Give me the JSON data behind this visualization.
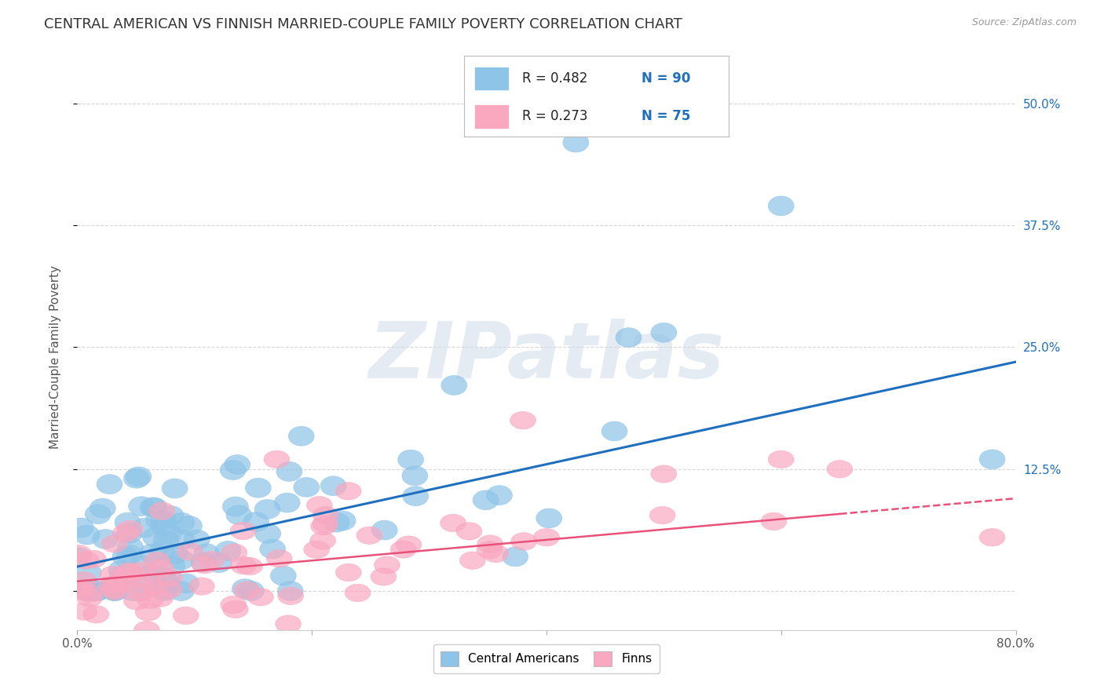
{
  "title": "CENTRAL AMERICAN VS FINNISH MARRIED-COUPLE FAMILY POVERTY CORRELATION CHART",
  "source": "Source: ZipAtlas.com",
  "ylabel": "Married-Couple Family Poverty",
  "xlim": [
    0.0,
    0.8
  ],
  "ylim": [
    -0.04,
    0.52
  ],
  "xticks": [
    0.0,
    0.2,
    0.4,
    0.6,
    0.8
  ],
  "xticklabels": [
    "0.0%",
    "",
    "",
    "",
    "80.0%"
  ],
  "yticks": [
    0.0,
    0.125,
    0.25,
    0.375,
    0.5
  ],
  "yticklabels_right": [
    "",
    "12.5%",
    "25.0%",
    "37.5%",
    "50.0%"
  ],
  "blue_color": "#8ec4e8",
  "pink_color": "#f9a8c0",
  "blue_line_color": "#1f6fbe",
  "pink_line_color": "#e8527a",
  "legend_R1": "R = 0.482",
  "legend_N1": "N = 90",
  "legend_R2": "R = 0.273",
  "legend_N2": "N = 75",
  "legend_label1": "Central Americans",
  "legend_label2": "Finns",
  "watermark": "ZIPatlas",
  "background_color": "#ffffff",
  "grid_color": "#cccccc",
  "title_fontsize": 13,
  "axis_label_fontsize": 11,
  "tick_fontsize": 11,
  "blue_R": 0.482,
  "blue_N": 90,
  "pink_R": 0.273,
  "pink_N": 75,
  "blue_line_start_x": 0.0,
  "blue_line_start_y": 0.025,
  "blue_line_end_x": 0.8,
  "blue_line_end_y": 0.235,
  "pink_line_start_x": 0.0,
  "pink_line_start_y": 0.01,
  "pink_line_end_x": 0.8,
  "pink_line_end_y": 0.095
}
